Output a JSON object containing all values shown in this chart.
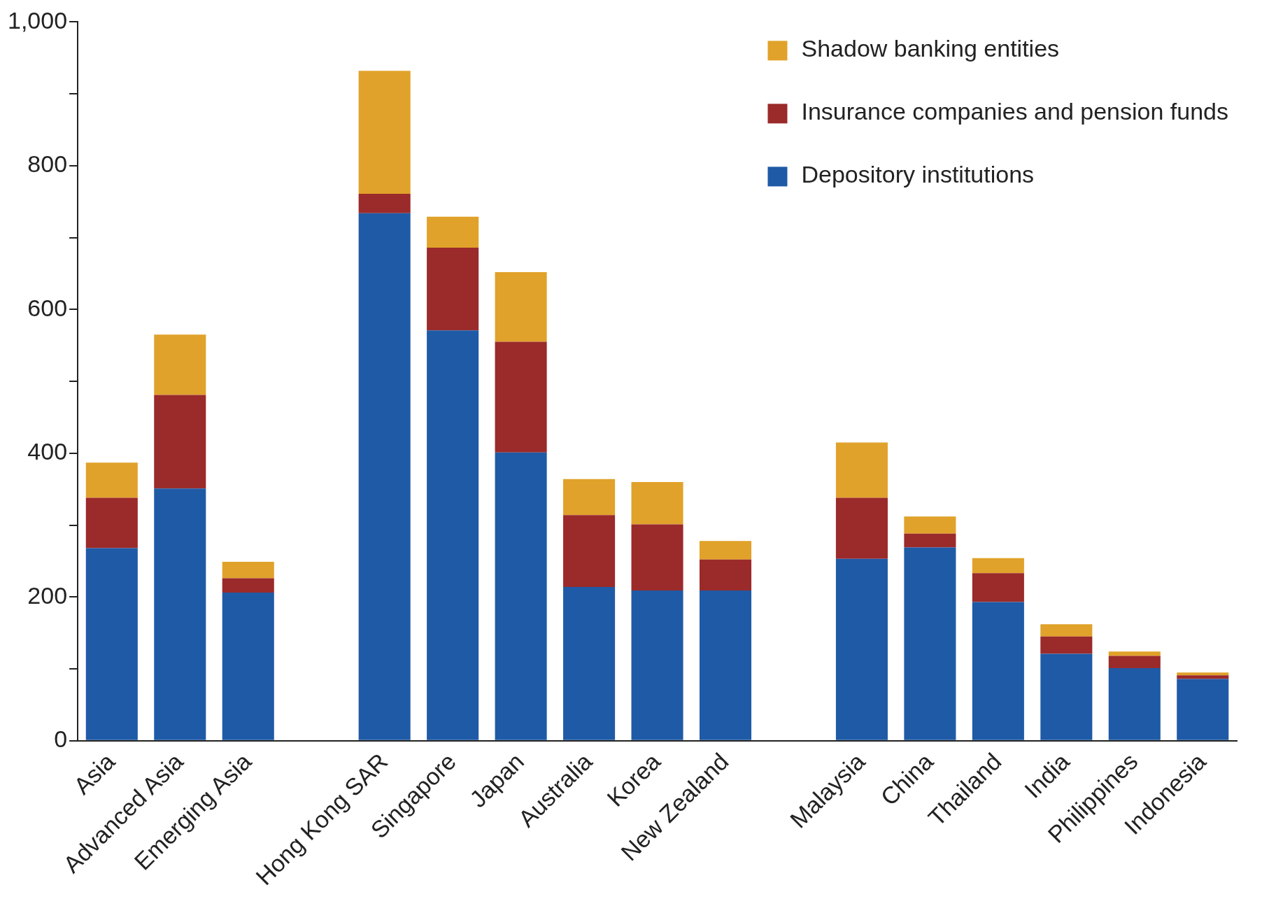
{
  "chart_data": {
    "type": "bar",
    "stacked": true,
    "categories": [
      "Asia",
      "Advanced Asia",
      "Emerging Asia",
      null,
      "Hong Kong SAR",
      "Singapore",
      "Japan",
      "Australia",
      "Korea",
      "New Zealand",
      null,
      "Malaysia",
      "China",
      "Thailand",
      "India",
      "Philippines",
      "Indonesia"
    ],
    "series": [
      {
        "name": "Depository institutions",
        "color": "#1f5aa6",
        "values": [
          268,
          351,
          206,
          null,
          734,
          571,
          401,
          214,
          209,
          209,
          null,
          253,
          269,
          193,
          121,
          101,
          86
        ]
      },
      {
        "name": "Insurance companies and pension funds",
        "color": "#9b2a2a",
        "values": [
          70,
          130,
          20,
          null,
          27,
          115,
          154,
          100,
          92,
          43,
          null,
          85,
          19,
          40,
          24,
          17,
          5
        ]
      },
      {
        "name": "Shadow banking entities",
        "color": "#e0a22a",
        "values": [
          49,
          84,
          23,
          null,
          171,
          43,
          97,
          50,
          59,
          26,
          null,
          77,
          24,
          21,
          17,
          6,
          4
        ]
      }
    ],
    "ylim": [
      0,
      1000
    ],
    "yticks": [
      0,
      {
        "value": 100,
        "label": null
      },
      200,
      {
        "value": 300,
        "label": null
      },
      400,
      {
        "value": 500,
        "label": null
      },
      600,
      {
        "value": 700,
        "label": null
      },
      800,
      {
        "value": 900,
        "label": null
      },
      {
        "value": 1000,
        "label": "1,000"
      }
    ],
    "grid": false,
    "legend": "top right"
  }
}
